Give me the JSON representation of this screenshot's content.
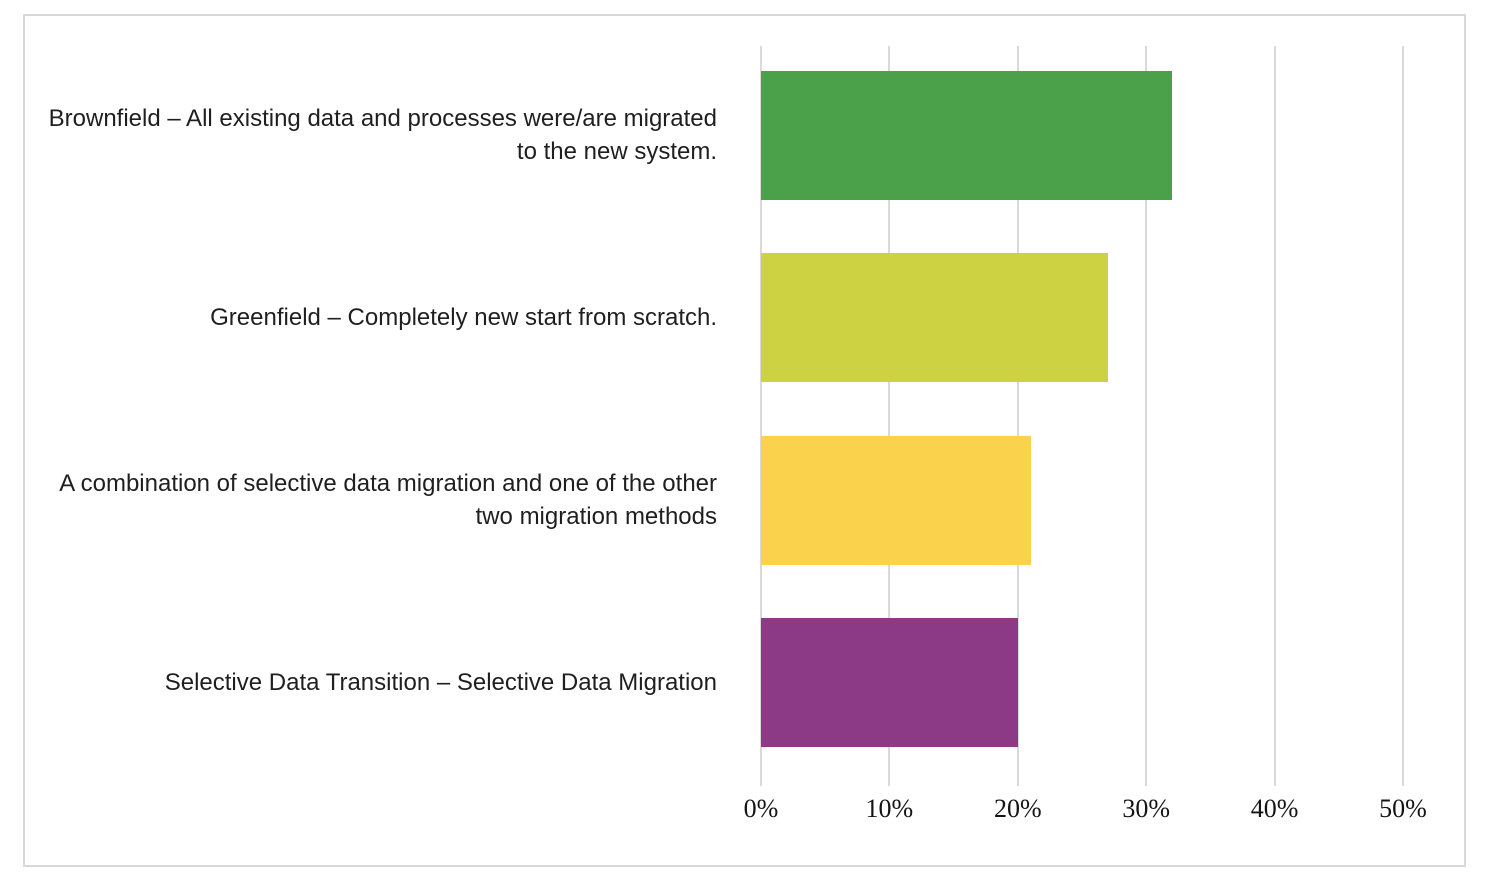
{
  "chart_data": {
    "type": "bar",
    "orientation": "horizontal",
    "title": "",
    "xlabel": "",
    "ylabel": "",
    "categories": [
      "Brownfield – All existing data and processes were/are migrated to the new system.",
      "Greenfield – Completely new start from scratch.",
      "A combination of selective data migration and one of the other two migration methods",
      "Selective Data Transition – Selective Data Migration"
    ],
    "values": [
      32,
      27,
      21,
      20
    ],
    "unit": "%",
    "bar_colors": [
      "#4aa14a",
      "#cdd243",
      "#fbd24c",
      "#8d3a86"
    ],
    "x_ticks": [
      "0%",
      "10%",
      "20%",
      "30%",
      "40%",
      "50%"
    ],
    "x_tick_values": [
      0,
      10,
      20,
      30,
      40,
      50
    ],
    "xlim": [
      0,
      50
    ],
    "grid": true,
    "legend": "none",
    "gridline_color": "#d9d9d9",
    "panel_border_color": "#d8d8d8",
    "background_color": "#ffffff",
    "label_text_color": "#1f1f1f"
  }
}
